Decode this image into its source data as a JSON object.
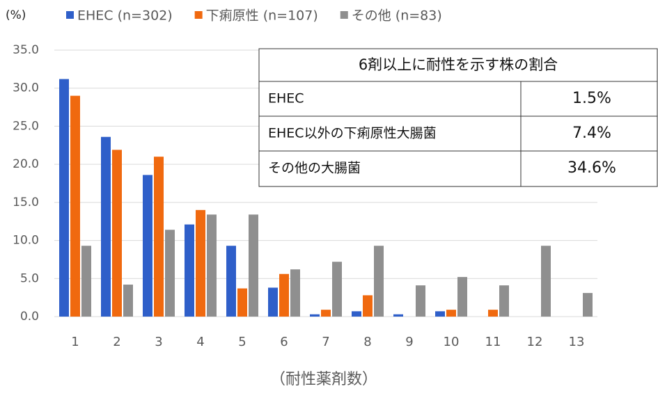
{
  "chart_data": {
    "type": "bar",
    "y_axis_label": "(%)",
    "x_axis_label": "（耐性薬剤数）",
    "categories": [
      "1",
      "2",
      "3",
      "4",
      "5",
      "6",
      "7",
      "8",
      "9",
      "10",
      "11",
      "12",
      "13"
    ],
    "series": [
      {
        "name": "EHEC (n=302)",
        "color": "#2f5fc9",
        "values": [
          31.2,
          23.6,
          18.6,
          12.1,
          9.3,
          3.8,
          0.3,
          0.7,
          0.3,
          0.7,
          0,
          0,
          0
        ]
      },
      {
        "name": "下痢原性 (n=107)",
        "color": "#f0690f",
        "values": [
          29.0,
          21.9,
          21.0,
          14.0,
          3.7,
          5.6,
          0.9,
          2.8,
          0,
          0.9,
          0.9,
          0,
          0
        ]
      },
      {
        "name": "その他 (n=83)",
        "color": "#8f8f8f",
        "values": [
          9.3,
          4.2,
          11.4,
          13.4,
          13.4,
          6.2,
          7.2,
          9.3,
          4.1,
          5.2,
          4.1,
          9.3,
          3.1
        ]
      }
    ],
    "ylim": [
      0,
      35
    ],
    "yticks": [
      {
        "value": 0,
        "label": "0.0"
      },
      {
        "value": 5,
        "label": "5.0"
      },
      {
        "value": 10,
        "label": "10.0"
      },
      {
        "value": 15,
        "label": "15.0"
      },
      {
        "value": 20,
        "label": "20.0"
      },
      {
        "value": 25,
        "label": "25.0"
      },
      {
        "value": 30,
        "label": "30.0"
      },
      {
        "value": 35,
        "label": "35.0"
      }
    ],
    "grid": true
  },
  "table": {
    "title": "6剤以上に耐性を示す株の割合",
    "rows": [
      [
        "EHEC",
        "1.5%"
      ],
      [
        "EHEC以外の下痢原性大腸菌",
        "7.4%"
      ],
      [
        "その他の大腸菌",
        "34.6%"
      ]
    ]
  }
}
